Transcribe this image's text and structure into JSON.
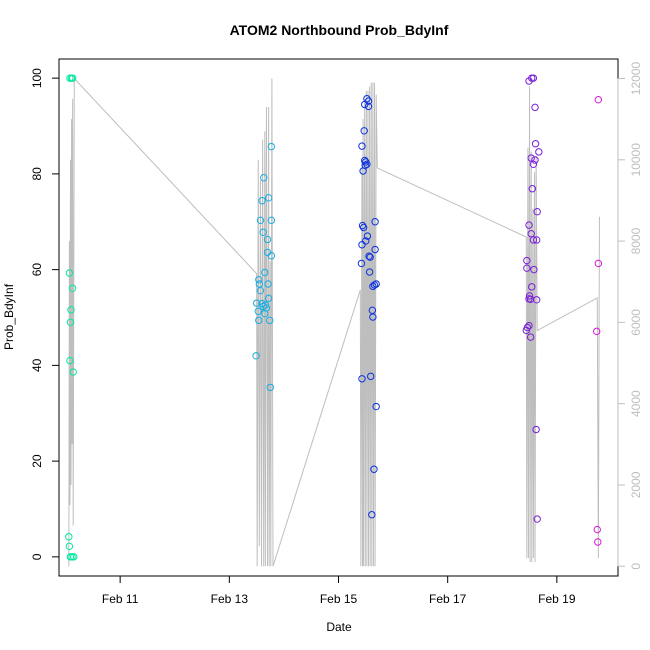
{
  "chart_data": {
    "type": "scatter",
    "title": "ATOM2 Northbound Prob_BdyInf",
    "xlabel": "Date",
    "ylabel": "Prob_BdyInf",
    "x_ticks": [
      {
        "day": 11,
        "label": "Feb 11"
      },
      {
        "day": 13,
        "label": "Feb 13"
      },
      {
        "day": 15,
        "label": "Feb 15"
      },
      {
        "day": 17,
        "label": "Feb 17"
      },
      {
        "day": 19,
        "label": "Feb 19"
      }
    ],
    "y_ticks": [
      0,
      20,
      40,
      60,
      80,
      100
    ],
    "y2_ticks": [
      0,
      2000,
      4000,
      6000,
      8000,
      10000,
      12000
    ],
    "xlim": [
      9.88,
      20.12
    ],
    "ylim": [
      -4,
      104
    ],
    "y2lim": [
      -240,
      12480
    ],
    "grid": false,
    "points": [
      {
        "t": 10.08,
        "y": 100
      },
      {
        "t": 10.11,
        "y": 100
      },
      {
        "t": 10.13,
        "y": 100
      },
      {
        "t": 10.07,
        "y": 59.3
      },
      {
        "t": 10.13,
        "y": 56.1
      },
      {
        "t": 10.1,
        "y": 51.6
      },
      {
        "t": 10.09,
        "y": 49.0
      },
      {
        "t": 10.08,
        "y": 41.0
      },
      {
        "t": 10.14,
        "y": 38.6
      },
      {
        "t": 10.06,
        "y": 4.2
      },
      {
        "t": 10.07,
        "y": 2.2
      },
      {
        "t": 10.09,
        "y": 0
      },
      {
        "t": 10.12,
        "y": 0
      },
      {
        "t": 10.15,
        "y": 0
      },
      {
        "t": 13.77,
        "y": 85.7
      },
      {
        "t": 13.63,
        "y": 79.2
      },
      {
        "t": 13.6,
        "y": 74.4
      },
      {
        "t": 13.72,
        "y": 75.0
      },
      {
        "t": 13.57,
        "y": 70.3
      },
      {
        "t": 13.77,
        "y": 70.3
      },
      {
        "t": 13.62,
        "y": 67.8
      },
      {
        "t": 13.7,
        "y": 66.3
      },
      {
        "t": 13.65,
        "y": 59.4
      },
      {
        "t": 13.7,
        "y": 63.6
      },
      {
        "t": 13.77,
        "y": 62.9
      },
      {
        "t": 13.54,
        "y": 57.9
      },
      {
        "t": 13.55,
        "y": 57.0
      },
      {
        "t": 13.71,
        "y": 57.0
      },
      {
        "t": 13.57,
        "y": 55.6
      },
      {
        "t": 13.72,
        "y": 54.0
      },
      {
        "t": 13.5,
        "y": 53.0
      },
      {
        "t": 13.6,
        "y": 52.9
      },
      {
        "t": 13.62,
        "y": 52.3
      },
      {
        "t": 13.66,
        "y": 52.6
      },
      {
        "t": 13.68,
        "y": 52.0
      },
      {
        "t": 13.53,
        "y": 51.3
      },
      {
        "t": 13.65,
        "y": 50.8
      },
      {
        "t": 13.54,
        "y": 49.4
      },
      {
        "t": 13.74,
        "y": 49.4
      },
      {
        "t": 13.49,
        "y": 42.0
      },
      {
        "t": 13.75,
        "y": 35.4
      },
      {
        "t": 15.52,
        "y": 95.7
      },
      {
        "t": 15.55,
        "y": 95.2
      },
      {
        "t": 15.48,
        "y": 94.5
      },
      {
        "t": 15.55,
        "y": 94.1
      },
      {
        "t": 15.47,
        "y": 89.0
      },
      {
        "t": 15.43,
        "y": 85.8
      },
      {
        "t": 15.48,
        "y": 82.8
      },
      {
        "t": 15.5,
        "y": 82.5
      },
      {
        "t": 15.52,
        "y": 82.0
      },
      {
        "t": 15.49,
        "y": 81.8
      },
      {
        "t": 15.45,
        "y": 80.6
      },
      {
        "t": 15.67,
        "y": 70.0
      },
      {
        "t": 15.44,
        "y": 69.2
      },
      {
        "t": 15.46,
        "y": 68.8
      },
      {
        "t": 15.53,
        "y": 67.0
      },
      {
        "t": 15.5,
        "y": 66.0
      },
      {
        "t": 15.43,
        "y": 65.2
      },
      {
        "t": 15.67,
        "y": 64.2
      },
      {
        "t": 15.56,
        "y": 62.8
      },
      {
        "t": 15.58,
        "y": 62.6
      },
      {
        "t": 15.42,
        "y": 61.3
      },
      {
        "t": 15.57,
        "y": 59.5
      },
      {
        "t": 15.69,
        "y": 57.0
      },
      {
        "t": 15.66,
        "y": 56.8
      },
      {
        "t": 15.63,
        "y": 56.5
      },
      {
        "t": 15.62,
        "y": 51.5
      },
      {
        "t": 15.63,
        "y": 50.1
      },
      {
        "t": 15.43,
        "y": 37.2
      },
      {
        "t": 15.59,
        "y": 37.7
      },
      {
        "t": 15.69,
        "y": 31.4
      },
      {
        "t": 15.65,
        "y": 18.3
      },
      {
        "t": 15.61,
        "y": 8.8
      },
      {
        "t": 18.54,
        "y": 100
      },
      {
        "t": 18.57,
        "y": 100
      },
      {
        "t": 18.49,
        "y": 99.4
      },
      {
        "t": 18.6,
        "y": 93.9
      },
      {
        "t": 18.61,
        "y": 86.3
      },
      {
        "t": 18.67,
        "y": 84.6
      },
      {
        "t": 18.53,
        "y": 83.3
      },
      {
        "t": 18.6,
        "y": 82.9
      },
      {
        "t": 18.57,
        "y": 82.0
      },
      {
        "t": 18.55,
        "y": 76.9
      },
      {
        "t": 18.64,
        "y": 72.1
      },
      {
        "t": 18.49,
        "y": 69.3
      },
      {
        "t": 18.53,
        "y": 67.5
      },
      {
        "t": 18.57,
        "y": 66.2
      },
      {
        "t": 18.63,
        "y": 66.2
      },
      {
        "t": 18.45,
        "y": 61.9
      },
      {
        "t": 18.45,
        "y": 60.3
      },
      {
        "t": 18.58,
        "y": 60.0
      },
      {
        "t": 18.54,
        "y": 56.4
      },
      {
        "t": 18.5,
        "y": 54.5
      },
      {
        "t": 18.49,
        "y": 53.9
      },
      {
        "t": 18.52,
        "y": 53.8
      },
      {
        "t": 18.63,
        "y": 53.7
      },
      {
        "t": 18.49,
        "y": 48.3
      },
      {
        "t": 18.46,
        "y": 47.9
      },
      {
        "t": 18.44,
        "y": 47.3
      },
      {
        "t": 18.52,
        "y": 45.9
      },
      {
        "t": 18.62,
        "y": 26.6
      },
      {
        "t": 18.64,
        "y": 7.9
      },
      {
        "t": 19.76,
        "y": 95.5
      },
      {
        "t": 19.76,
        "y": 61.3
      },
      {
        "t": 19.73,
        "y": 47.1
      },
      {
        "t": 19.74,
        "y": 5.7
      },
      {
        "t": 19.75,
        "y": 3.1
      }
    ],
    "secondary_line": {
      "color": "#bebebe",
      "points": [
        [
          10.06,
          0
        ],
        [
          10.07,
          8000
        ],
        [
          10.08,
          1500
        ],
        [
          10.09,
          10000
        ],
        [
          10.1,
          2000
        ],
        [
          10.11,
          11000
        ],
        [
          10.12,
          3000
        ],
        [
          10.13,
          11500
        ],
        [
          10.14,
          1000
        ],
        [
          10.16,
          12000
        ],
        [
          13.5,
          7200
        ],
        [
          13.51,
          0
        ],
        [
          13.53,
          10000
        ],
        [
          13.55,
          500
        ],
        [
          13.57,
          9500
        ],
        [
          13.59,
          0
        ],
        [
          13.61,
          10500
        ],
        [
          13.63,
          0
        ],
        [
          13.65,
          10700
        ],
        [
          13.66,
          0
        ],
        [
          13.67,
          7000
        ],
        [
          13.68,
          11300
        ],
        [
          13.7,
          0
        ],
        [
          13.72,
          11300
        ],
        [
          13.73,
          0
        ],
        [
          13.75,
          7500
        ],
        [
          13.76,
          0
        ],
        [
          13.78,
          12000
        ],
        [
          13.8,
          0
        ],
        [
          15.4,
          6800
        ],
        [
          15.41,
          0
        ],
        [
          15.43,
          10000
        ],
        [
          15.44,
          0
        ],
        [
          15.45,
          11000
        ],
        [
          15.46,
          0
        ],
        [
          15.48,
          11500
        ],
        [
          15.49,
          0
        ],
        [
          15.51,
          11700
        ],
        [
          15.52,
          0
        ],
        [
          15.54,
          11700
        ],
        [
          15.55,
          0
        ],
        [
          15.57,
          11800
        ],
        [
          15.58,
          0
        ],
        [
          15.6,
          11900
        ],
        [
          15.61,
          0
        ],
        [
          15.63,
          11900
        ],
        [
          15.64,
          0
        ],
        [
          15.66,
          11900
        ],
        [
          15.67,
          0
        ],
        [
          15.69,
          11600
        ],
        [
          15.71,
          9800
        ],
        [
          18.44,
          8100
        ],
        [
          18.45,
          200
        ],
        [
          18.47,
          10300
        ],
        [
          18.48,
          200
        ],
        [
          18.5,
          11800
        ],
        [
          18.51,
          100
        ],
        [
          18.53,
          10200
        ],
        [
          18.54,
          100
        ],
        [
          18.56,
          8800
        ],
        [
          18.57,
          200
        ],
        [
          18.59,
          9700
        ],
        [
          18.6,
          100
        ],
        [
          18.62,
          10100
        ],
        [
          18.64,
          5800
        ],
        [
          19.74,
          6600
        ],
        [
          19.76,
          200
        ],
        [
          19.78,
          8600
        ]
      ]
    },
    "series_colors": [
      {
        "from": 10.0,
        "to": 11.0,
        "color": "#00e8a0"
      },
      {
        "from": 13.0,
        "to": 14.2,
        "color": "#1aaee0"
      },
      {
        "from": 15.0,
        "to": 16.0,
        "color": "#0b32e0"
      },
      {
        "from": 18.0,
        "to": 19.0,
        "color": "#7b1fd8"
      },
      {
        "from": 19.5,
        "to": 20.0,
        "color": "#d61ad6"
      }
    ]
  }
}
